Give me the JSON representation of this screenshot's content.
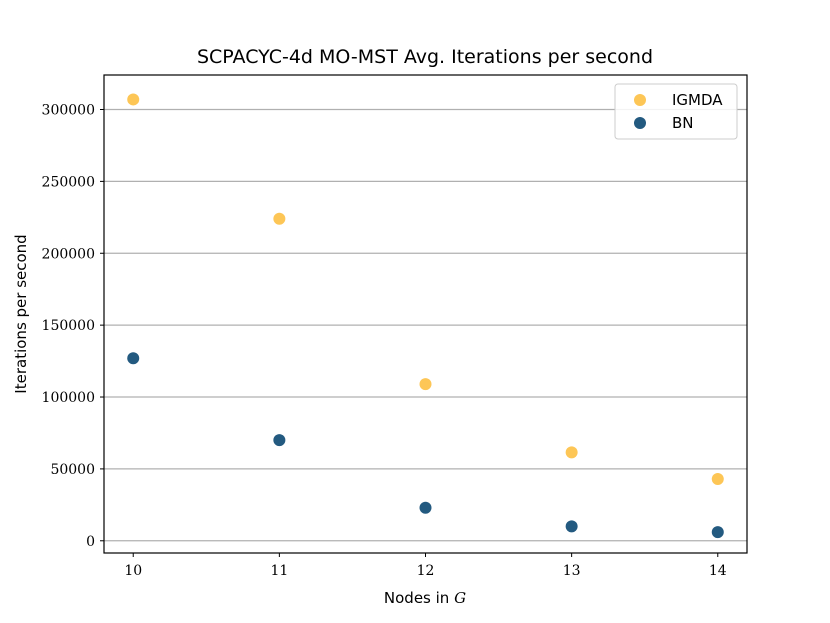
{
  "chart_data": {
    "type": "scatter",
    "title": "SCPACYC-4d MO-MST Avg. Iterations per second",
    "xlabel": "Nodes in ",
    "xlabel_math": "G",
    "ylabel": "Iterations per second",
    "x": [
      10,
      11,
      12,
      13,
      14
    ],
    "xlim": [
      9.8,
      14.2
    ],
    "ylim": [
      -8500,
      324000
    ],
    "xticks": [
      10,
      11,
      12,
      13,
      14
    ],
    "xtick_labels": [
      "10",
      "11",
      "12",
      "13",
      "14"
    ],
    "yticks": [
      0,
      50000,
      100000,
      150000,
      200000,
      250000,
      300000
    ],
    "ytick_labels": [
      "0",
      "50000",
      "100000",
      "150000",
      "200000",
      "250000",
      "300000"
    ],
    "grid": "horizontal",
    "legend_position": "top-right",
    "series": [
      {
        "name": "IGMDA",
        "color": "#fdc656",
        "values": [
          307000,
          224000,
          109000,
          61500,
          43000
        ]
      },
      {
        "name": "BN",
        "color": "#235a80",
        "values": [
          127000,
          70000,
          23000,
          10000,
          6000
        ]
      }
    ]
  }
}
